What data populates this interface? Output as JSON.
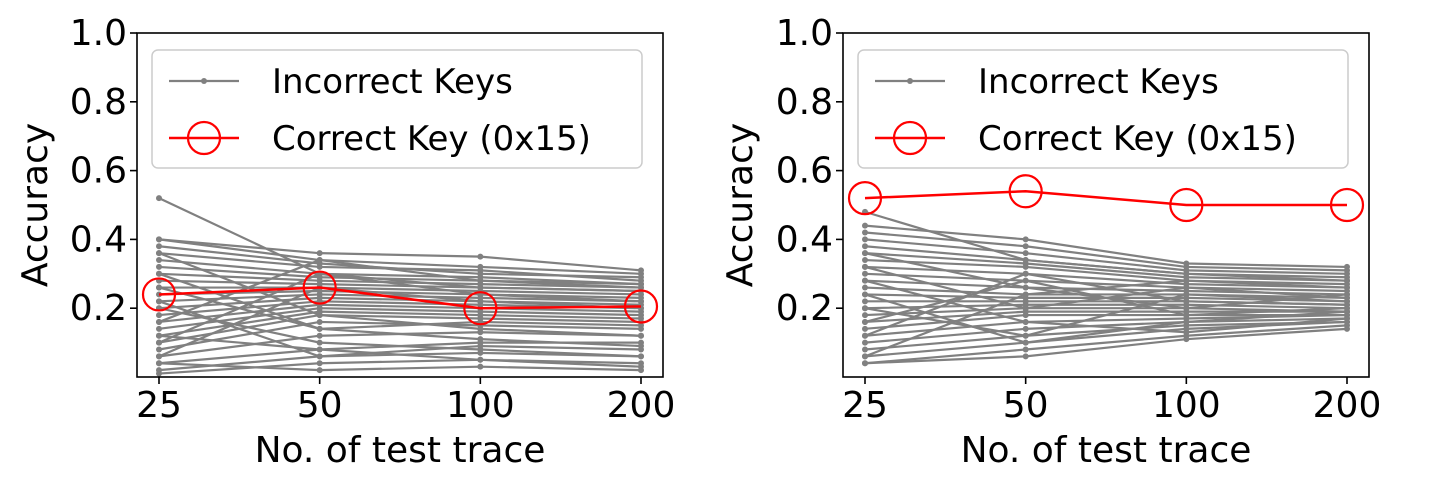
{
  "chart_data": [
    {
      "type": "line",
      "xlabel": "No. of test trace",
      "ylabel": "Accuracy",
      "categories": [
        "25",
        "50",
        "100",
        "200"
      ],
      "ylim": [
        0.0,
        1.0
      ],
      "yticks": [
        "1.0",
        "0.8",
        "0.6",
        "0.4",
        "0.2"
      ],
      "ytick_values": [
        1.0,
        0.8,
        0.6,
        0.4,
        0.2
      ],
      "legend_position": "top-center",
      "grid": false,
      "colors": {
        "incorrect": "#808080",
        "correct": "#ff0000"
      },
      "legend": [
        {
          "label": "Incorrect Keys",
          "marker": "dot",
          "color": "#808080"
        },
        {
          "label": "Correct Key (0x15)",
          "marker": "open-circle",
          "color": "#ff0000"
        }
      ],
      "series": [
        {
          "name": "Correct Key (0x15)",
          "values": [
            0.24,
            0.26,
            0.2,
            0.205
          ]
        },
        {
          "name": "Incorrect Keys",
          "values": [
            0.52,
            0.3,
            0.24,
            0.22
          ]
        },
        {
          "name": "Incorrect Keys",
          "values": [
            0.4,
            0.36,
            0.35,
            0.31
          ]
        },
        {
          "name": "Incorrect Keys",
          "values": [
            0.4,
            0.34,
            0.32,
            0.3
          ]
        },
        {
          "name": "Incorrect Keys",
          "values": [
            0.38,
            0.33,
            0.3,
            0.29
          ]
        },
        {
          "name": "Incorrect Keys",
          "values": [
            0.36,
            0.32,
            0.31,
            0.28
          ]
        },
        {
          "name": "Incorrect Keys",
          "values": [
            0.34,
            0.3,
            0.29,
            0.27
          ]
        },
        {
          "name": "Incorrect Keys",
          "values": [
            0.32,
            0.29,
            0.28,
            0.27
          ]
        },
        {
          "name": "Incorrect Keys",
          "values": [
            0.3,
            0.28,
            0.27,
            0.26
          ]
        },
        {
          "name": "Incorrect Keys",
          "values": [
            0.28,
            0.27,
            0.26,
            0.25
          ]
        },
        {
          "name": "Incorrect Keys",
          "values": [
            0.26,
            0.26,
            0.25,
            0.24
          ]
        },
        {
          "name": "Incorrect Keys",
          "values": [
            0.24,
            0.25,
            0.24,
            0.23
          ]
        },
        {
          "name": "Incorrect Keys",
          "values": [
            0.22,
            0.24,
            0.23,
            0.22
          ]
        },
        {
          "name": "Incorrect Keys",
          "values": [
            0.2,
            0.23,
            0.22,
            0.21
          ]
        },
        {
          "name": "Incorrect Keys",
          "values": [
            0.18,
            0.22,
            0.21,
            0.2
          ]
        },
        {
          "name": "Incorrect Keys",
          "values": [
            0.16,
            0.21,
            0.2,
            0.19
          ]
        },
        {
          "name": "Incorrect Keys",
          "values": [
            0.14,
            0.2,
            0.19,
            0.18
          ]
        },
        {
          "name": "Incorrect Keys",
          "values": [
            0.12,
            0.19,
            0.18,
            0.17
          ]
        },
        {
          "name": "Incorrect Keys",
          "values": [
            0.1,
            0.18,
            0.17,
            0.16
          ]
        },
        {
          "name": "Incorrect Keys",
          "values": [
            0.08,
            0.16,
            0.15,
            0.14
          ]
        },
        {
          "name": "Incorrect Keys",
          "values": [
            0.06,
            0.12,
            0.13,
            0.12
          ]
        },
        {
          "name": "Incorrect Keys",
          "values": [
            0.04,
            0.08,
            0.1,
            0.1
          ]
        },
        {
          "name": "Incorrect Keys",
          "values": [
            0.02,
            0.06,
            0.07,
            0.06
          ]
        },
        {
          "name": "Incorrect Keys",
          "values": [
            0.01,
            0.04,
            0.05,
            0.04
          ]
        },
        {
          "name": "Incorrect Keys",
          "values": [
            0.04,
            0.02,
            0.03,
            0.02
          ]
        },
        {
          "name": "Incorrect Keys",
          "values": [
            0.12,
            0.08,
            0.05,
            0.03
          ]
        },
        {
          "name": "Incorrect Keys",
          "values": [
            0.2,
            0.1,
            0.08,
            0.06
          ]
        },
        {
          "name": "Incorrect Keys",
          "values": [
            0.3,
            0.14,
            0.11,
            0.09
          ]
        },
        {
          "name": "Incorrect Keys",
          "values": [
            0.36,
            0.18,
            0.14,
            0.12
          ]
        },
        {
          "name": "Incorrect Keys",
          "values": [
            0.1,
            0.3,
            0.26,
            0.25
          ]
        },
        {
          "name": "Incorrect Keys",
          "values": [
            0.06,
            0.26,
            0.22,
            0.2
          ]
        },
        {
          "name": "Incorrect Keys",
          "values": [
            0.26,
            0.14,
            0.16,
            0.15
          ]
        },
        {
          "name": "Incorrect Keys",
          "values": [
            0.16,
            0.34,
            0.28,
            0.26
          ]
        },
        {
          "name": "Incorrect Keys",
          "values": [
            0.22,
            0.06,
            0.09,
            0.08
          ]
        }
      ]
    },
    {
      "type": "line",
      "xlabel": "No. of test trace",
      "ylabel": "Accuracy",
      "categories": [
        "25",
        "50",
        "100",
        "200"
      ],
      "ylim": [
        0.0,
        1.0
      ],
      "yticks": [
        "1.0",
        "0.8",
        "0.6",
        "0.4",
        "0.2"
      ],
      "ytick_values": [
        1.0,
        0.8,
        0.6,
        0.4,
        0.2
      ],
      "legend_position": "top-center",
      "grid": false,
      "colors": {
        "incorrect": "#808080",
        "correct": "#ff0000"
      },
      "legend": [
        {
          "label": "Incorrect Keys",
          "marker": "dot",
          "color": "#808080"
        },
        {
          "label": "Correct Key (0x15)",
          "marker": "open-circle",
          "color": "#ff0000"
        }
      ],
      "series": [
        {
          "name": "Correct Key (0x15)",
          "values": [
            0.52,
            0.54,
            0.5,
            0.5
          ]
        },
        {
          "name": "Incorrect Keys",
          "values": [
            0.48,
            0.34,
            0.3,
            0.28
          ]
        },
        {
          "name": "Incorrect Keys",
          "values": [
            0.44,
            0.4,
            0.33,
            0.32
          ]
        },
        {
          "name": "Incorrect Keys",
          "values": [
            0.42,
            0.38,
            0.32,
            0.31
          ]
        },
        {
          "name": "Incorrect Keys",
          "values": [
            0.4,
            0.36,
            0.31,
            0.3
          ]
        },
        {
          "name": "Incorrect Keys",
          "values": [
            0.38,
            0.34,
            0.3,
            0.29
          ]
        },
        {
          "name": "Incorrect Keys",
          "values": [
            0.36,
            0.33,
            0.29,
            0.28
          ]
        },
        {
          "name": "Incorrect Keys",
          "values": [
            0.34,
            0.32,
            0.28,
            0.27
          ]
        },
        {
          "name": "Incorrect Keys",
          "values": [
            0.32,
            0.3,
            0.27,
            0.26
          ]
        },
        {
          "name": "Incorrect Keys",
          "values": [
            0.3,
            0.28,
            0.26,
            0.25
          ]
        },
        {
          "name": "Incorrect Keys",
          "values": [
            0.28,
            0.26,
            0.25,
            0.24
          ]
        },
        {
          "name": "Incorrect Keys",
          "values": [
            0.26,
            0.24,
            0.24,
            0.23
          ]
        },
        {
          "name": "Incorrect Keys",
          "values": [
            0.24,
            0.23,
            0.23,
            0.22
          ]
        },
        {
          "name": "Incorrect Keys",
          "values": [
            0.22,
            0.22,
            0.22,
            0.21
          ]
        },
        {
          "name": "Incorrect Keys",
          "values": [
            0.2,
            0.21,
            0.21,
            0.2
          ]
        },
        {
          "name": "Incorrect Keys",
          "values": [
            0.18,
            0.2,
            0.2,
            0.19
          ]
        },
        {
          "name": "Incorrect Keys",
          "values": [
            0.16,
            0.19,
            0.19,
            0.19
          ]
        },
        {
          "name": "Incorrect Keys",
          "values": [
            0.14,
            0.18,
            0.18,
            0.18
          ]
        },
        {
          "name": "Incorrect Keys",
          "values": [
            0.12,
            0.16,
            0.17,
            0.18
          ]
        },
        {
          "name": "Incorrect Keys",
          "values": [
            0.1,
            0.14,
            0.16,
            0.17
          ]
        },
        {
          "name": "Incorrect Keys",
          "values": [
            0.08,
            0.12,
            0.15,
            0.16
          ]
        },
        {
          "name": "Incorrect Keys",
          "values": [
            0.06,
            0.1,
            0.14,
            0.16
          ]
        },
        {
          "name": "Incorrect Keys",
          "values": [
            0.04,
            0.08,
            0.12,
            0.15
          ]
        },
        {
          "name": "Incorrect Keys",
          "values": [
            0.04,
            0.06,
            0.11,
            0.14
          ]
        },
        {
          "name": "Incorrect Keys",
          "values": [
            0.12,
            0.3,
            0.22,
            0.21
          ]
        },
        {
          "name": "Incorrect Keys",
          "values": [
            0.2,
            0.12,
            0.24,
            0.22
          ]
        },
        {
          "name": "Incorrect Keys",
          "values": [
            0.28,
            0.16,
            0.13,
            0.17
          ]
        },
        {
          "name": "Incorrect Keys",
          "values": [
            0.36,
            0.26,
            0.2,
            0.24
          ]
        },
        {
          "name": "Incorrect Keys",
          "values": [
            0.06,
            0.24,
            0.28,
            0.26
          ]
        },
        {
          "name": "Incorrect Keys",
          "values": [
            0.16,
            0.28,
            0.18,
            0.2
          ]
        },
        {
          "name": "Incorrect Keys",
          "values": [
            0.24,
            0.1,
            0.16,
            0.19
          ]
        },
        {
          "name": "Incorrect Keys",
          "values": [
            0.32,
            0.2,
            0.26,
            0.23
          ]
        }
      ]
    }
  ]
}
